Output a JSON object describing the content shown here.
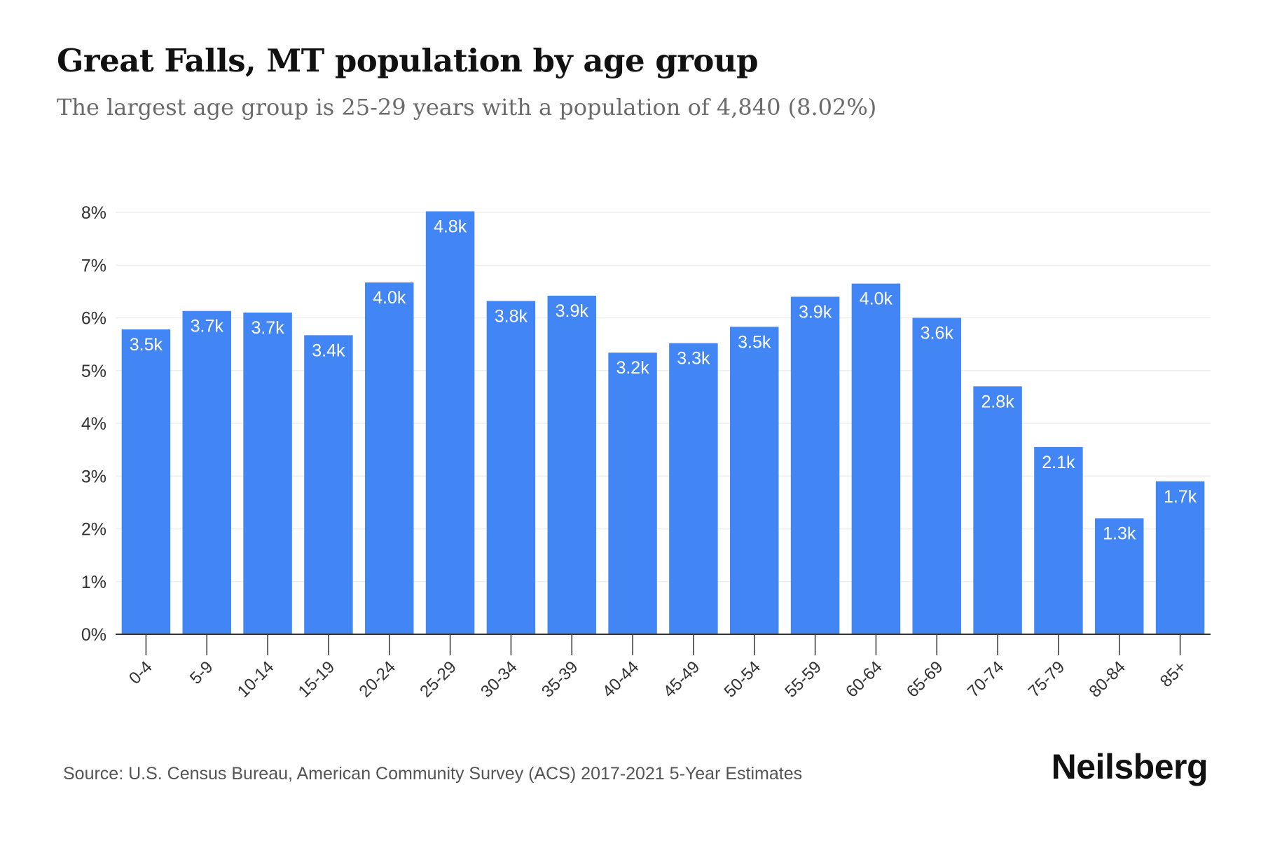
{
  "header": {
    "title": "Great Falls, MT population by age group",
    "subtitle": "The largest age group is 25-29 years with a population of 4,840 (8.02%)"
  },
  "footer": {
    "source": "Source: U.S. Census Bureau, American Community Survey (ACS) 2017-2021 5-Year Estimates",
    "brand": "Neilsberg"
  },
  "colors": {
    "bar": "#4285f4",
    "bar_label": "#ffffff",
    "grid": "#eeeeee",
    "axis": "#333333",
    "tick_text": "#333333"
  },
  "chart_data": {
    "type": "bar",
    "title": "Great Falls, MT population by age group",
    "subtitle": "The largest age group is 25-29 years with a population of 4,840 (8.02%)",
    "xlabel": "",
    "ylabel": "",
    "categories": [
      "0-4",
      "5-9",
      "10-14",
      "15-19",
      "20-24",
      "25-29",
      "30-34",
      "35-39",
      "40-44",
      "45-49",
      "50-54",
      "55-59",
      "60-64",
      "65-69",
      "70-74",
      "75-79",
      "80-84",
      "85+"
    ],
    "values": [
      5.78,
      6.13,
      6.1,
      5.67,
      6.67,
      8.02,
      6.32,
      6.42,
      5.34,
      5.52,
      5.83,
      6.4,
      6.65,
      6.0,
      4.7,
      3.55,
      2.2,
      2.9
    ],
    "data_labels": [
      "3.5k",
      "3.7k",
      "3.7k",
      "3.4k",
      "4.0k",
      "4.8k",
      "3.8k",
      "3.9k",
      "3.2k",
      "3.3k",
      "3.5k",
      "3.9k",
      "4.0k",
      "3.6k",
      "2.8k",
      "2.1k",
      "1.3k",
      "1.7k"
    ],
    "value_unit": "%",
    "ylim": [
      0,
      8
    ],
    "yticks": [
      "0%",
      "1%",
      "2%",
      "3%",
      "4%",
      "5%",
      "6%",
      "7%",
      "8%"
    ],
    "grid": true,
    "legend": "none"
  }
}
